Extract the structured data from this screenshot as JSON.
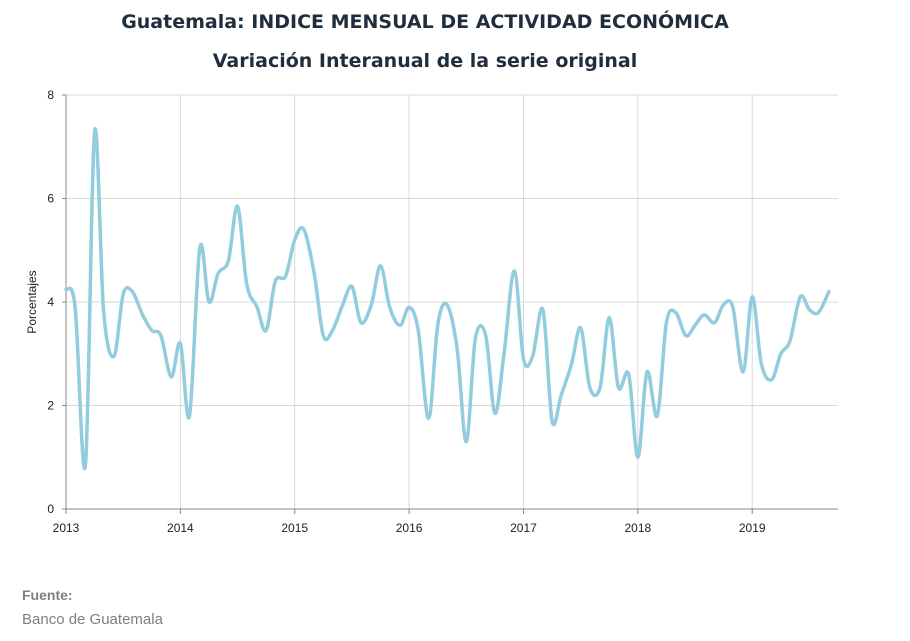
{
  "chart_data": {
    "type": "line",
    "title": "Guatemala: INDICE MENSUAL DE ACTIVIDAD ECONÓMICA",
    "subtitle": "Variación Interanual de la serie original",
    "xlabel": "",
    "ylabel": "Porcentajes",
    "xlim": [
      2013,
      2019.75
    ],
    "ylim": [
      0,
      8
    ],
    "yticks": [
      0,
      2,
      4,
      6,
      8
    ],
    "xticks": [
      "2013",
      "2014",
      "2015",
      "2016",
      "2017",
      "2018",
      "2019"
    ],
    "grid": true,
    "legend": "none",
    "line_color": "#93CDDD",
    "series": [
      {
        "points": [
          [
            2013.0,
            4.25
          ],
          [
            2013.08,
            3.9
          ],
          [
            2013.17,
            0.85
          ],
          [
            2013.25,
            7.3
          ],
          [
            2013.33,
            3.8
          ],
          [
            2013.42,
            2.95
          ],
          [
            2013.5,
            4.15
          ],
          [
            2013.58,
            4.2
          ],
          [
            2013.67,
            3.75
          ],
          [
            2013.75,
            3.45
          ],
          [
            2013.83,
            3.35
          ],
          [
            2013.92,
            2.55
          ],
          [
            2014.0,
            3.2
          ],
          [
            2014.08,
            1.8
          ],
          [
            2014.17,
            5.05
          ],
          [
            2014.25,
            4.0
          ],
          [
            2014.33,
            4.55
          ],
          [
            2014.42,
            4.8
          ],
          [
            2014.5,
            5.85
          ],
          [
            2014.58,
            4.35
          ],
          [
            2014.67,
            3.9
          ],
          [
            2014.75,
            3.45
          ],
          [
            2014.83,
            4.4
          ],
          [
            2014.92,
            4.5
          ],
          [
            2015.0,
            5.2
          ],
          [
            2015.08,
            5.4
          ],
          [
            2015.17,
            4.55
          ],
          [
            2015.25,
            3.35
          ],
          [
            2015.33,
            3.45
          ],
          [
            2015.42,
            3.95
          ],
          [
            2015.5,
            4.3
          ],
          [
            2015.58,
            3.6
          ],
          [
            2015.67,
            3.95
          ],
          [
            2015.75,
            4.7
          ],
          [
            2015.83,
            3.9
          ],
          [
            2015.92,
            3.55
          ],
          [
            2016.0,
            3.9
          ],
          [
            2016.08,
            3.45
          ],
          [
            2016.17,
            1.75
          ],
          [
            2016.25,
            3.55
          ],
          [
            2016.33,
            3.95
          ],
          [
            2016.42,
            3.1
          ],
          [
            2016.5,
            1.3
          ],
          [
            2016.58,
            3.3
          ],
          [
            2016.67,
            3.35
          ],
          [
            2016.75,
            1.85
          ],
          [
            2016.83,
            3.0
          ],
          [
            2016.92,
            4.6
          ],
          [
            2017.0,
            2.9
          ],
          [
            2017.08,
            2.95
          ],
          [
            2017.17,
            3.85
          ],
          [
            2017.25,
            1.7
          ],
          [
            2017.33,
            2.2
          ],
          [
            2017.42,
            2.8
          ],
          [
            2017.5,
            3.5
          ],
          [
            2017.58,
            2.35
          ],
          [
            2017.67,
            2.35
          ],
          [
            2017.75,
            3.7
          ],
          [
            2017.83,
            2.35
          ],
          [
            2017.92,
            2.6
          ],
          [
            2018.0,
            1.0
          ],
          [
            2018.08,
            2.65
          ],
          [
            2018.17,
            1.8
          ],
          [
            2018.25,
            3.6
          ],
          [
            2018.33,
            3.8
          ],
          [
            2018.42,
            3.35
          ],
          [
            2018.5,
            3.55
          ],
          [
            2018.58,
            3.75
          ],
          [
            2018.67,
            3.6
          ],
          [
            2018.75,
            3.95
          ],
          [
            2018.83,
            3.9
          ],
          [
            2018.92,
            2.65
          ],
          [
            2019.0,
            4.1
          ],
          [
            2019.08,
            2.8
          ],
          [
            2019.17,
            2.5
          ],
          [
            2019.25,
            3.0
          ],
          [
            2019.33,
            3.25
          ],
          [
            2019.42,
            4.1
          ],
          [
            2019.5,
            3.85
          ],
          [
            2019.58,
            3.8
          ],
          [
            2019.67,
            4.2
          ]
        ]
      }
    ]
  },
  "source": {
    "label": "Fuente:",
    "text": "Banco de Guatemala"
  }
}
